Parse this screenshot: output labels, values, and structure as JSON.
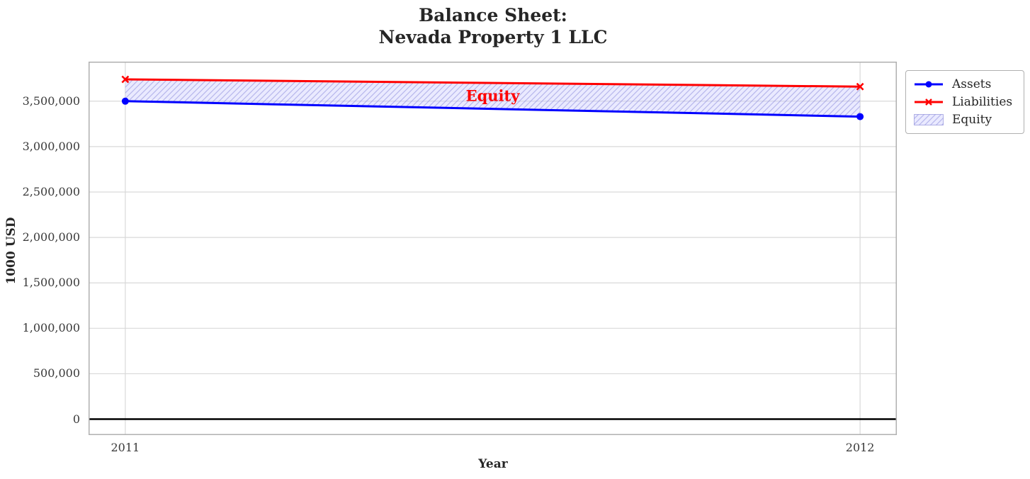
{
  "chart": {
    "title_lines": [
      "Balance Sheet:",
      "Nevada Property 1 LLC"
    ]
  },
  "chart_data": {
    "type": "line",
    "title": "Balance Sheet:\nNevada Property 1 LLC",
    "xlabel": "Year",
    "ylabel": "1000 USD",
    "x": [
      2011,
      2012
    ],
    "series": [
      {
        "name": "Assets",
        "values": [
          3500000,
          3330000
        ],
        "color": "#0000ff",
        "marker": "circle",
        "linewidth": 3
      },
      {
        "name": "Liabilities",
        "values": [
          3740000,
          3660000
        ],
        "color": "#ff0000",
        "marker": "x",
        "linewidth": 3
      }
    ],
    "band": {
      "label": "Equity",
      "between": [
        "Assets",
        "Liabilities"
      ],
      "fill": "#ccccff",
      "hatch": "//",
      "hatch_color": "#7878d2",
      "label_color": "#ff0000"
    },
    "x_ticks": [
      2011,
      2012
    ],
    "x_tick_labels": [
      "2011",
      "2012"
    ],
    "y_ticks": [
      0,
      500000,
      1000000,
      1500000,
      2000000,
      2500000,
      3000000,
      3500000
    ],
    "y_tick_labels": [
      "0",
      "500,000",
      "1,000,000",
      "1,500,000",
      "2,000,000",
      "2,500,000",
      "3,000,000",
      "3,500,000"
    ],
    "xlim": [
      2010.95,
      2012.05
    ],
    "ylim": [
      -175000,
      3935000
    ],
    "zero_line": true,
    "grid": true,
    "legend_position": "outside-top-right",
    "colors": {
      "grid": "#d9d9d9",
      "spine": "#b0b0b0",
      "zero_line": "#000000",
      "tick_text": "#3a3a3a",
      "title_text": "#262626"
    }
  }
}
